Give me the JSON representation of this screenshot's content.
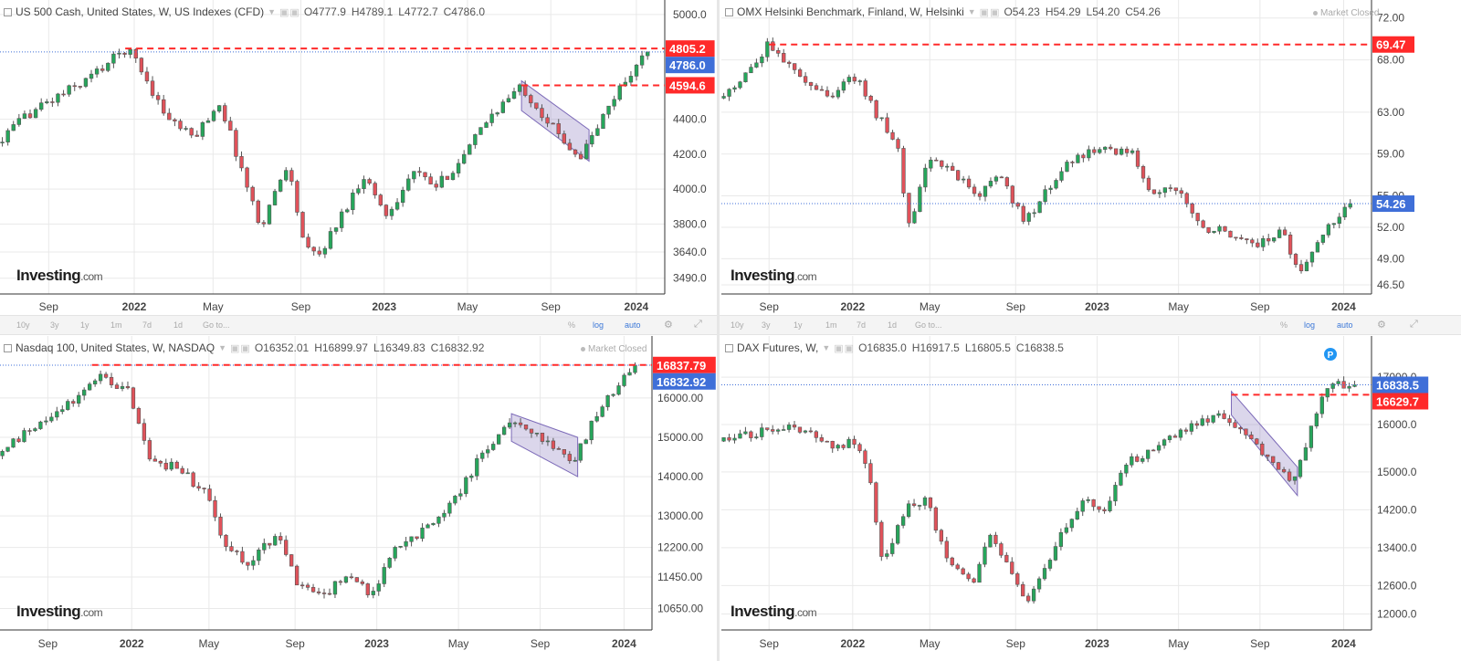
{
  "brand": {
    "name": "Investing",
    "suffix": ".com"
  },
  "toolbar": {
    "ranges": [
      "10y",
      "3y",
      "1y",
      "1m",
      "7d",
      "1d"
    ],
    "goto": "Go to...",
    "percent": "%",
    "log": "log",
    "auto": "auto",
    "settings_icon": "gear-icon",
    "fullscreen_icon": "expand-icon"
  },
  "colors": {
    "up": "#26a65b",
    "down": "#e0525a",
    "resistance": "#ff2a2a",
    "channel": "#7c6ab8",
    "current": "#3f6fd8",
    "grid": "#e9e9e9"
  },
  "charts": [
    {
      "title": "US 500 Cash, United States, W, US Indexes (CFD)",
      "ohlc": {
        "open": "O4777.9",
        "high": "H4789.1",
        "low": "L4772.7",
        "close": "C4786.0"
      },
      "market_closed": "",
      "chart_data": {
        "type": "candlestick",
        "y_ticks": [
          "5000.0",
          "4400.0",
          "4200.0",
          "4000.0",
          "3800.0",
          "3640.0",
          "3490.0"
        ],
        "y_tick_values": [
          5000,
          4400,
          4200,
          4000,
          3800,
          3640,
          3490
        ],
        "ylim": [
          3410,
          5010
        ],
        "x_labels": [
          {
            "t": 0.14,
            "text": "Sep",
            "bold": false
          },
          {
            "t": 0.33,
            "text": "2022",
            "bold": true
          },
          {
            "t": 0.505,
            "text": "May",
            "bold": false
          },
          {
            "t": 0.7,
            "text": "Sep",
            "bold": false
          },
          {
            "t": 0.885,
            "text": "2023",
            "bold": true
          },
          {
            "t": 1.07,
            "text": "May",
            "bold": false
          },
          {
            "t": 1.255,
            "text": "Sep",
            "bold": false
          },
          {
            "t": 1.445,
            "text": "2024",
            "bold": true
          }
        ],
        "anchors": [
          [
            0,
            4200
          ],
          [
            0.1,
            4440
          ],
          [
            0.22,
            4620
          ],
          [
            0.31,
            4800
          ],
          [
            0.33,
            4760
          ],
          [
            0.4,
            4420
          ],
          [
            0.46,
            4290
          ],
          [
            0.52,
            4500
          ],
          [
            0.61,
            3780
          ],
          [
            0.67,
            4150
          ],
          [
            0.71,
            3650
          ],
          [
            0.74,
            3620
          ],
          [
            0.79,
            3850
          ],
          [
            0.84,
            4080
          ],
          [
            0.89,
            3850
          ],
          [
            0.95,
            4100
          ],
          [
            1.0,
            4010
          ],
          [
            1.06,
            4180
          ],
          [
            1.12,
            4420
          ],
          [
            1.19,
            4590
          ],
          [
            1.26,
            4350
          ],
          [
            1.32,
            4180
          ],
          [
            1.36,
            4360
          ],
          [
            1.41,
            4590
          ],
          [
            1.47,
            4786
          ]
        ],
        "lines": [
          {
            "label": "4805.2",
            "value": 4805.2,
            "from": 0.31,
            "to": 1.47,
            "style": "dashed"
          },
          {
            "label": "4594.6",
            "value": 4594.6,
            "from": 1.19,
            "to": 1.47,
            "style": "dashed"
          }
        ],
        "current": {
          "label": "4786.0",
          "value": 4786.0
        },
        "channel": {
          "x1": 1.19,
          "x2": 1.34,
          "top1": 4620,
          "top2": 4340,
          "bot1": 4450,
          "bot2": 4160
        }
      }
    },
    {
      "title": "OMX Helsinki Benchmark, Finland, W, Helsinki",
      "ohlc": {
        "open": "O54.23",
        "high": "H54.29",
        "low": "L54.20",
        "close": "C54.26"
      },
      "market_closed": "Market Closed",
      "chart_data": {
        "type": "candlestick",
        "y_ticks": [
          "72.00",
          "68.00",
          "63.00",
          "59.00",
          "55.00",
          "52.00",
          "49.00",
          "46.50"
        ],
        "y_tick_values": [
          72,
          68,
          63,
          59,
          55,
          52,
          49,
          46.5
        ],
        "ylim": [
          45.8,
          72.5
        ],
        "x_labels": [
          {
            "t": 0.14,
            "text": "Sep",
            "bold": false
          },
          {
            "t": 0.33,
            "text": "2022",
            "bold": true
          },
          {
            "t": 0.505,
            "text": "May",
            "bold": false
          },
          {
            "t": 0.7,
            "text": "Sep",
            "bold": false
          },
          {
            "t": 0.885,
            "text": "2023",
            "bold": true
          },
          {
            "t": 1.07,
            "text": "May",
            "bold": false
          },
          {
            "t": 1.255,
            "text": "Sep",
            "bold": false
          },
          {
            "t": 1.445,
            "text": "2024",
            "bold": true
          }
        ],
        "anchors": [
          [
            0,
            63.5
          ],
          [
            0.08,
            66.0
          ],
          [
            0.14,
            69.5
          ],
          [
            0.21,
            66.0
          ],
          [
            0.27,
            64.5
          ],
          [
            0.34,
            66.5
          ],
          [
            0.38,
            63.0
          ],
          [
            0.43,
            60.0
          ],
          [
            0.46,
            51.5
          ],
          [
            0.5,
            59.0
          ],
          [
            0.56,
            57.0
          ],
          [
            0.62,
            55.0
          ],
          [
            0.66,
            57.5
          ],
          [
            0.72,
            52.5
          ],
          [
            0.77,
            55.5
          ],
          [
            0.83,
            58.5
          ],
          [
            0.88,
            59.2
          ],
          [
            0.96,
            59.5
          ],
          [
            1.0,
            55.5
          ],
          [
            1.07,
            55.8
          ],
          [
            1.12,
            52.0
          ],
          [
            1.19,
            51.5
          ],
          [
            1.25,
            50.5
          ],
          [
            1.31,
            51.5
          ],
          [
            1.34,
            47.5
          ],
          [
            1.4,
            51.5
          ],
          [
            1.46,
            54.26
          ]
        ],
        "lines": [
          {
            "label": "69.47",
            "value": 69.47,
            "from": 0.14,
            "to": 1.47,
            "style": "dashed"
          }
        ],
        "current": {
          "label": "54.26",
          "value": 54.26
        },
        "channel": null
      }
    },
    {
      "title": "Nasdaq 100, United States, W, NASDAQ",
      "ohlc": {
        "open": "O16352.01",
        "high": "H16899.97",
        "low": "L16349.83",
        "close": "C16832.92"
      },
      "market_closed": "Market Closed",
      "chart_data": {
        "type": "candlestick",
        "y_ticks": [
          "16000.00",
          "15000.00",
          "14000.00",
          "13000.00",
          "12200.00",
          "11450.00",
          "10650.00"
        ],
        "y_tick_values": [
          16000,
          15000,
          14000,
          13000,
          12200,
          11450,
          10650
        ],
        "ylim": [
          10150,
          17250
        ],
        "x_labels": [
          {
            "t": 0.14,
            "text": "Sep",
            "bold": false
          },
          {
            "t": 0.33,
            "text": "2022",
            "bold": true
          },
          {
            "t": 0.505,
            "text": "May",
            "bold": false
          },
          {
            "t": 0.7,
            "text": "Sep",
            "bold": false
          },
          {
            "t": 0.885,
            "text": "2023",
            "bold": true
          },
          {
            "t": 1.07,
            "text": "May",
            "bold": false
          },
          {
            "t": 1.255,
            "text": "Sep",
            "bold": false
          },
          {
            "t": 1.445,
            "text": "2024",
            "bold": true
          }
        ],
        "anchors": [
          [
            0,
            14300
          ],
          [
            0.1,
            15200
          ],
          [
            0.2,
            15900
          ],
          [
            0.26,
            16600
          ],
          [
            0.32,
            16200
          ],
          [
            0.37,
            14400
          ],
          [
            0.44,
            14200
          ],
          [
            0.5,
            13500
          ],
          [
            0.54,
            12200
          ],
          [
            0.59,
            11800
          ],
          [
            0.66,
            12500
          ],
          [
            0.71,
            11200
          ],
          [
            0.77,
            10950
          ],
          [
            0.82,
            11600
          ],
          [
            0.87,
            10950
          ],
          [
            0.92,
            12100
          ],
          [
            0.98,
            12500
          ],
          [
            1.06,
            13400
          ],
          [
            1.13,
            14700
          ],
          [
            1.19,
            15500
          ],
          [
            1.27,
            14800
          ],
          [
            1.33,
            14400
          ],
          [
            1.39,
            15700
          ],
          [
            1.47,
            16832.92
          ]
        ],
        "lines": [
          {
            "label": "16837.79",
            "value": 16837.79,
            "from": 0.24,
            "to": 1.47,
            "style": "dashed"
          }
        ],
        "current": {
          "label": "16832.92",
          "value": 16832.92
        },
        "channel": {
          "x1": 1.19,
          "x2": 1.34,
          "top1": 15600,
          "top2": 15000,
          "bot1": 14900,
          "bot2": 14000
        }
      }
    },
    {
      "title": "DAX Futures, W,",
      "ohlc": {
        "open": "O16835.0",
        "high": "H16917.5",
        "low": "L16805.5",
        "close": "C16838.5"
      },
      "market_closed": "",
      "chart_data": {
        "type": "candlestick",
        "y_ticks": [
          "17000.0",
          "16000.0",
          "15000.0",
          "14200.0",
          "13400.0",
          "12600.0",
          "12000.0"
        ],
        "y_tick_values": [
          17000,
          16000,
          15000,
          14200,
          13400,
          12600,
          12000
        ],
        "ylim": [
          11700,
          17600
        ],
        "x_labels": [
          {
            "t": 0.14,
            "text": "Sep",
            "bold": false
          },
          {
            "t": 0.33,
            "text": "2022",
            "bold": true
          },
          {
            "t": 0.505,
            "text": "May",
            "bold": false
          },
          {
            "t": 0.7,
            "text": "Sep",
            "bold": false
          },
          {
            "t": 0.885,
            "text": "2023",
            "bold": true
          },
          {
            "t": 1.07,
            "text": "May",
            "bold": false
          },
          {
            "t": 1.255,
            "text": "Sep",
            "bold": false
          },
          {
            "t": 1.445,
            "text": "2024",
            "bold": true
          }
        ],
        "anchors": [
          [
            0,
            15600
          ],
          [
            0.1,
            15800
          ],
          [
            0.18,
            15900
          ],
          [
            0.24,
            15800
          ],
          [
            0.3,
            15500
          ],
          [
            0.34,
            15700
          ],
          [
            0.37,
            14800
          ],
          [
            0.4,
            13000
          ],
          [
            0.45,
            14200
          ],
          [
            0.5,
            14400
          ],
          [
            0.54,
            13200
          ],
          [
            0.6,
            12600
          ],
          [
            0.64,
            13800
          ],
          [
            0.69,
            12900
          ],
          [
            0.73,
            12200
          ],
          [
            0.8,
            13600
          ],
          [
            0.85,
            14400
          ],
          [
            0.9,
            14200
          ],
          [
            0.95,
            15200
          ],
          [
            1.0,
            15400
          ],
          [
            1.05,
            15700
          ],
          [
            1.12,
            16100
          ],
          [
            1.17,
            16200
          ],
          [
            1.23,
            15700
          ],
          [
            1.3,
            15000
          ],
          [
            1.33,
            14800
          ],
          [
            1.38,
            16200
          ],
          [
            1.41,
            16900
          ],
          [
            1.47,
            16838.5
          ]
        ],
        "lines": [
          {
            "label": "16629.7",
            "value": 16629.7,
            "from": 1.19,
            "to": 1.47,
            "style": "dashed"
          }
        ],
        "current": {
          "label": "16838.5",
          "value": 16838.5
        },
        "channel": {
          "x1": 1.19,
          "x2": 1.34,
          "top1": 16700,
          "top2": 15100,
          "bot1": 16200,
          "bot2": 14500
        },
        "marker": {
          "label": "P",
          "t": 1.415
        }
      }
    }
  ]
}
